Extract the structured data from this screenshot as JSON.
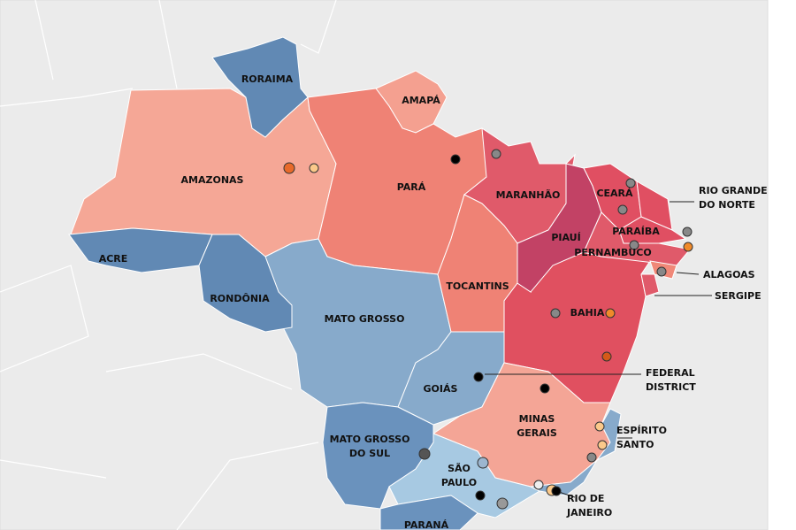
{
  "states": [
    {
      "label": [
        "RORAIMA"
      ]
    },
    {
      "label": [
        "AMAPÁ"
      ]
    },
    {
      "label": [
        "AMAZONAS"
      ]
    },
    {
      "label": [
        "PARÁ"
      ]
    },
    {
      "label": [
        "ACRE"
      ]
    },
    {
      "label": [
        "RONDÔNIA"
      ]
    },
    {
      "label": [
        "MARANHÃO"
      ]
    },
    {
      "label": [
        "CEARÁ"
      ]
    },
    {
      "label": [
        "RIO GRANDE",
        "DO NORTE"
      ]
    },
    {
      "label": [
        "PARAÍBA"
      ]
    },
    {
      "label": [
        "PIAUÍ"
      ]
    },
    {
      "label": [
        "PERNAMBUCO"
      ]
    },
    {
      "label": [
        "ALAGOAS"
      ]
    },
    {
      "label": [
        "SERGIPE"
      ]
    },
    {
      "label": [
        "TOCANTINS"
      ]
    },
    {
      "label": [
        "BAHIA"
      ]
    },
    {
      "label": [
        "MATO GROSSO"
      ]
    },
    {
      "label": [
        "GOIÁS"
      ]
    },
    {
      "label": [
        "FEDERAL",
        "DISTRICT"
      ]
    },
    {
      "label": [
        "MINAS",
        "GERAIS"
      ]
    },
    {
      "label": [
        "ESPÍRITO",
        "SANTO"
      ]
    },
    {
      "label": [
        "MATO GROSSO",
        "DO SUL"
      ]
    },
    {
      "label": [
        "SÃO",
        "PAULO"
      ]
    },
    {
      "label": [
        "RIO DE",
        "JANEIRO"
      ]
    },
    {
      "label": [
        "PARANÁ"
      ]
    }
  ]
}
